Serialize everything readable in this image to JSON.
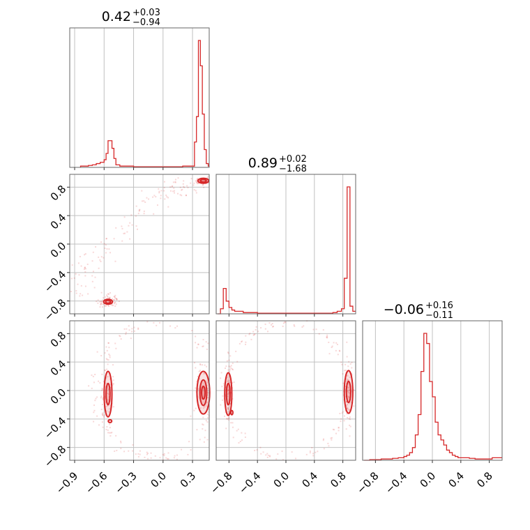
{
  "chart_data": {
    "type": "corner",
    "colors": {
      "accent": "#d62728",
      "grid": "#c0c0c0",
      "frame": "#666666"
    },
    "axes": [
      {
        "range": [
          -0.95,
          0.47
        ],
        "ticks": [
          -0.9,
          -0.6,
          -0.3,
          0.0,
          0.3
        ],
        "tick_labels": [
          "−0.9",
          "−0.6",
          "−0.3",
          "0.0",
          "0.3"
        ]
      },
      {
        "range": [
          -0.98,
          0.98
        ],
        "ticks": [
          -0.8,
          -0.4,
          0.0,
          0.4,
          0.8
        ],
        "tick_labels": [
          "−0.8",
          "−0.4",
          "0.0",
          "0.4",
          "0.8"
        ]
      },
      {
        "range": [
          -0.98,
          0.98
        ],
        "ticks": [
          -0.8,
          -0.4,
          0.0,
          0.4,
          0.8
        ],
        "tick_labels": [
          "−0.8",
          "−0.4",
          "0.0",
          "0.4",
          "0.8"
        ]
      }
    ],
    "titles": [
      {
        "main": "0.42",
        "upper": "+0.03",
        "lower": "−0.94"
      },
      {
        "main": "0.89",
        "upper": "+0.02",
        "lower": "−1.68"
      },
      {
        "main": "−0.06",
        "upper": "+0.16",
        "lower": "−0.11"
      }
    ],
    "histograms": [
      {
        "x": [
          -0.84,
          -0.8,
          -0.76,
          -0.72,
          -0.68,
          -0.64,
          -0.6,
          -0.58,
          -0.56,
          -0.54,
          -0.52,
          -0.5,
          -0.48,
          -0.44,
          -0.4,
          -0.3,
          -0.2,
          -0.1,
          0.0,
          0.1,
          0.2,
          0.26,
          0.3,
          0.32,
          0.34,
          0.36,
          0.38,
          0.4,
          0.42,
          0.44,
          0.46
        ],
        "y": [
          0.01,
          0.01,
          0.015,
          0.02,
          0.03,
          0.04,
          0.06,
          0.11,
          0.21,
          0.21,
          0.15,
          0.07,
          0.02,
          0.01,
          0.01,
          0.005,
          0.005,
          0.005,
          0.005,
          0.005,
          0.01,
          0.01,
          0.01,
          0.2,
          0.4,
          1.0,
          0.8,
          0.42,
          0.14,
          0.03,
          0.01
        ]
      },
      {
        "x": [
          -0.96,
          -0.92,
          -0.88,
          -0.84,
          -0.8,
          -0.76,
          -0.72,
          -0.6,
          -0.4,
          -0.2,
          0.0,
          0.2,
          0.4,
          0.6,
          0.66,
          0.72,
          0.78,
          0.82,
          0.86,
          0.9,
          0.94
        ],
        "y": [
          0.0,
          0.04,
          0.2,
          0.1,
          0.05,
          0.03,
          0.02,
          0.01,
          0.005,
          0.005,
          0.005,
          0.005,
          0.005,
          0.005,
          0.01,
          0.02,
          0.04,
          0.28,
          1.0,
          0.06,
          0.02
        ]
      },
      {
        "x": [
          -0.96,
          -0.88,
          -0.8,
          -0.72,
          -0.64,
          -0.56,
          -0.48,
          -0.4,
          -0.36,
          -0.32,
          -0.28,
          -0.24,
          -0.2,
          -0.16,
          -0.12,
          -0.08,
          -0.04,
          0.0,
          0.04,
          0.08,
          0.12,
          0.16,
          0.2,
          0.24,
          0.28,
          0.32,
          0.36,
          0.44,
          0.52,
          0.6,
          0.68,
          0.76,
          0.84,
          0.92
        ],
        "y": [
          0.0,
          0.005,
          0.005,
          0.01,
          0.01,
          0.015,
          0.02,
          0.03,
          0.04,
          0.06,
          0.1,
          0.2,
          0.36,
          0.7,
          1.0,
          0.92,
          0.62,
          0.5,
          0.3,
          0.2,
          0.16,
          0.12,
          0.08,
          0.06,
          0.04,
          0.03,
          0.02,
          0.02,
          0.015,
          0.01,
          0.01,
          0.01,
          0.02,
          0.02
        ]
      }
    ],
    "scatter_regions": [
      {
        "row": 1,
        "col": 0,
        "clusters": [
          {
            "center": [
              0.41,
              0.88
            ],
            "spread": [
              0.04,
              0.02
            ],
            "n": 80
          },
          {
            "center": [
              -0.55,
              -0.8
            ],
            "spread": [
              0.05,
              0.05
            ],
            "n": 70
          },
          {
            "arc_x": [
              -0.9,
              0.35
            ],
            "arc_y": [
              -0.7,
              0.85
            ],
            "n": 140
          }
        ]
      },
      {
        "row": 2,
        "col": 0,
        "clusters": [
          {
            "center": [
              -0.56,
              0.0
            ],
            "spread": [
              0.03,
              0.25
            ],
            "n": 80
          },
          {
            "center": [
              0.41,
              0.0
            ],
            "spread": [
              0.05,
              0.25
            ],
            "n": 80
          },
          {
            "ring": [
              -0.06,
              0.0,
              0.62,
              0.95
            ],
            "n": 160
          }
        ]
      },
      {
        "row": 2,
        "col": 1,
        "clusters": [
          {
            "center": [
              -0.8,
              0.0
            ],
            "spread": [
              0.03,
              0.25
            ],
            "n": 80
          },
          {
            "center": [
              0.87,
              0.0
            ],
            "spread": [
              0.03,
              0.25
            ],
            "n": 80
          },
          {
            "ring": [
              0.0,
              0.0,
              0.88,
              0.95
            ],
            "n": 160
          }
        ]
      }
    ],
    "contours": [
      {
        "row": 1,
        "col": 0,
        "blobs": [
          {
            "center": [
              0.41,
              0.89
            ],
            "rx": [
              0.055,
              0.03
            ],
            "ry": [
              0.035,
              0.02
            ]
          },
          {
            "center": [
              -0.56,
              -0.81
            ],
            "rx": [
              0.045,
              0.025
            ],
            "ry": [
              0.035,
              0.02
            ]
          }
        ]
      },
      {
        "row": 2,
        "col": 0,
        "blobs": [
          {
            "center": [
              -0.56,
              -0.05
            ],
            "rx": [
              0.04,
              0.02
            ],
            "ry": [
              0.32,
              0.15
            ]
          },
          {
            "center": [
              0.41,
              -0.03
            ],
            "rx": [
              0.065,
              0.035,
              0.018
            ],
            "ry": [
              0.3,
              0.18,
              0.09
            ]
          },
          {
            "center": [
              -0.54,
              -0.43
            ],
            "rx": [
              0.018
            ],
            "ry": [
              0.02
            ]
          }
        ]
      },
      {
        "row": 2,
        "col": 1,
        "blobs": [
          {
            "center": [
              -0.81,
              -0.05
            ],
            "rx": [
              0.05,
              0.025
            ],
            "ry": [
              0.3,
              0.15
            ]
          },
          {
            "center": [
              0.88,
              -0.02
            ],
            "rx": [
              0.06,
              0.03
            ],
            "ry": [
              0.3,
              0.15
            ]
          },
          {
            "center": [
              -0.76,
              -0.31
            ],
            "rx": [
              0.015
            ],
            "ry": [
              0.03
            ]
          }
        ]
      }
    ]
  }
}
